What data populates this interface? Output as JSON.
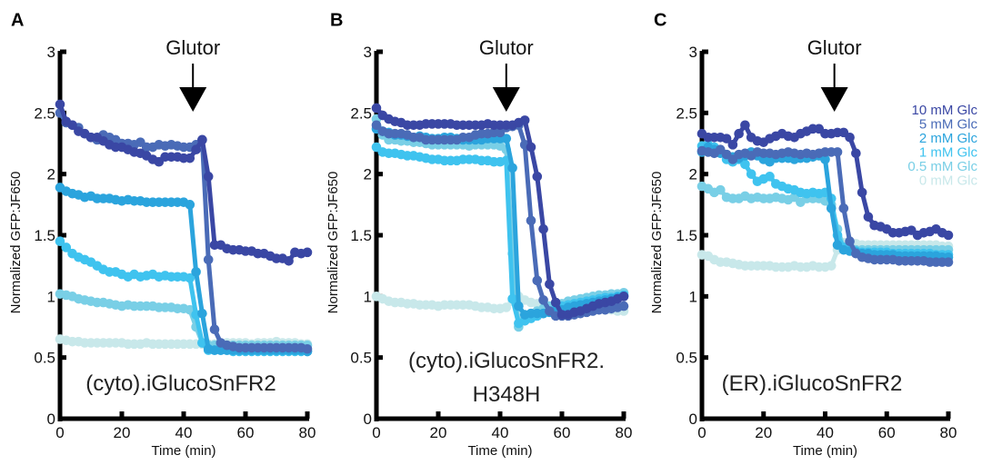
{
  "chart_data": [
    {
      "type": "line",
      "panel_label": "A",
      "title": "(cyto).iGlucoSnFR2",
      "xlabel": "Time (min)",
      "ylabel": "Normalized GFP:JF650",
      "xlim": [
        0,
        80
      ],
      "ylim": [
        0,
        3
      ],
      "xticks": [
        "0",
        "20",
        "40",
        "60",
        "80"
      ],
      "yticks": [
        "0",
        "0.5",
        "1",
        "1.5",
        "2",
        "2.5",
        "3"
      ],
      "annotation": {
        "text": "Glutor",
        "x": 43
      },
      "x": [
        0,
        2,
        4,
        6,
        8,
        10,
        12,
        14,
        16,
        18,
        20,
        22,
        24,
        26,
        28,
        30,
        32,
        34,
        36,
        38,
        40,
        42,
        44,
        46,
        48,
        50,
        52,
        54,
        56,
        58,
        60,
        62,
        64,
        66,
        68,
        70,
        72,
        74,
        76,
        78,
        80
      ],
      "series": [
        {
          "name": "10 mM Glc",
          "color": "#3a47a4",
          "values": [
            2.57,
            2.43,
            2.4,
            2.35,
            2.33,
            2.3,
            2.3,
            2.27,
            2.24,
            2.22,
            2.22,
            2.2,
            2.18,
            2.17,
            2.15,
            2.12,
            2.1,
            2.14,
            2.14,
            2.14,
            2.13,
            2.13,
            2.2,
            2.28,
            1.98,
            1.42,
            1.42,
            1.39,
            1.38,
            1.38,
            1.37,
            1.37,
            1.35,
            1.35,
            1.33,
            1.31,
            1.31,
            1.29,
            1.36,
            1.35,
            1.36
          ]
        },
        {
          "name": "5 mM Glc",
          "color": "#4a6bb7",
          "values": [
            2.5,
            2.42,
            2.4,
            2.38,
            2.33,
            2.3,
            2.28,
            2.32,
            2.3,
            2.28,
            2.25,
            2.25,
            2.24,
            2.26,
            2.22,
            2.22,
            2.24,
            2.23,
            2.24,
            2.23,
            2.22,
            2.22,
            2.24,
            2.28,
            1.3,
            0.73,
            0.62,
            0.6,
            0.59,
            0.58,
            0.58,
            0.58,
            0.58,
            0.58,
            0.58,
            0.58,
            0.58,
            0.58,
            0.58,
            0.58,
            0.57
          ]
        },
        {
          "name": "2 mM Glc",
          "color": "#2ba4dd",
          "values": [
            1.89,
            1.86,
            1.84,
            1.83,
            1.81,
            1.82,
            1.8,
            1.8,
            1.8,
            1.79,
            1.78,
            1.79,
            1.78,
            1.78,
            1.77,
            1.77,
            1.77,
            1.77,
            1.77,
            1.77,
            1.77,
            1.75,
            1.2,
            0.86,
            0.57,
            0.56,
            0.56,
            0.56,
            0.56,
            0.56,
            0.56,
            0.56,
            0.56,
            0.56,
            0.56,
            0.56,
            0.56,
            0.56,
            0.56,
            0.56,
            0.55
          ]
        },
        {
          "name": "1 mM Glc",
          "color": "#3fc3ef",
          "values": [
            1.45,
            1.4,
            1.35,
            1.32,
            1.3,
            1.28,
            1.25,
            1.22,
            1.2,
            1.2,
            1.18,
            1.16,
            1.18,
            1.16,
            1.17,
            1.18,
            1.16,
            1.17,
            1.16,
            1.16,
            1.16,
            1.15,
            0.85,
            0.62,
            0.56,
            0.56,
            0.56,
            0.56,
            0.55,
            0.55,
            0.55,
            0.55,
            0.55,
            0.55,
            0.55,
            0.55,
            0.55,
            0.55,
            0.55,
            0.55,
            0.55
          ]
        },
        {
          "name": "0.5 mM Glc",
          "color": "#79cfe6",
          "values": [
            1.02,
            1.01,
            1.0,
            0.98,
            0.97,
            0.96,
            0.95,
            0.95,
            0.94,
            0.93,
            0.92,
            0.93,
            0.92,
            0.92,
            0.92,
            0.92,
            0.91,
            0.91,
            0.91,
            0.9,
            0.9,
            0.89,
            0.75,
            0.62,
            0.6,
            0.6,
            0.6,
            0.6,
            0.6,
            0.6,
            0.6,
            0.6,
            0.6,
            0.6,
            0.6,
            0.6,
            0.6,
            0.6,
            0.6,
            0.6,
            0.6
          ]
        },
        {
          "name": "0 mM Glc",
          "color": "#c8e8ea",
          "values": [
            0.65,
            0.64,
            0.63,
            0.63,
            0.62,
            0.62,
            0.62,
            0.62,
            0.62,
            0.62,
            0.62,
            0.61,
            0.61,
            0.61,
            0.62,
            0.61,
            0.61,
            0.61,
            0.61,
            0.61,
            0.61,
            0.61,
            0.61,
            0.61,
            0.61,
            0.61,
            0.61,
            0.62,
            0.62,
            0.62,
            0.62,
            0.61,
            0.62,
            0.62,
            0.62,
            0.63,
            0.62,
            0.62,
            0.62,
            0.61,
            0.61
          ]
        }
      ]
    },
    {
      "type": "line",
      "panel_label": "B",
      "title": "(cyto).iGlucoSnFR2.\nH348H",
      "title_lines": [
        "(cyto).iGlucoSnFR2.",
        "H348H"
      ],
      "xlabel": "Time (min)",
      "ylabel": "Normalized GFP:JF650",
      "xlim": [
        0,
        80
      ],
      "ylim": [
        0,
        3
      ],
      "xticks": [
        "0",
        "20",
        "40",
        "60",
        "80"
      ],
      "yticks": [
        "0",
        "0.5",
        "1",
        "1.5",
        "2",
        "2.5",
        "3"
      ],
      "annotation": {
        "text": "Glutor",
        "x": 42
      },
      "x": [
        0,
        2,
        4,
        6,
        8,
        10,
        12,
        14,
        16,
        18,
        20,
        22,
        24,
        26,
        28,
        30,
        32,
        34,
        36,
        38,
        40,
        42,
        44,
        46,
        48,
        50,
        52,
        54,
        56,
        58,
        60,
        62,
        64,
        66,
        68,
        70,
        72,
        74,
        76,
        78,
        80
      ],
      "series": [
        {
          "name": "10 mM Glc",
          "color": "#3a47a4",
          "values": [
            2.54,
            2.48,
            2.45,
            2.43,
            2.42,
            2.4,
            2.4,
            2.4,
            2.41,
            2.41,
            2.41,
            2.41,
            2.41,
            2.4,
            2.4,
            2.4,
            2.4,
            2.4,
            2.41,
            2.4,
            2.4,
            2.4,
            2.4,
            2.42,
            2.44,
            2.22,
            1.98,
            1.55,
            1.1,
            0.95,
            0.85,
            0.85,
            0.87,
            0.88,
            0.9,
            0.92,
            0.94,
            0.95,
            0.96,
            0.98,
            1.0
          ]
        },
        {
          "name": "5 mM Glc",
          "color": "#4a6bb7",
          "values": [
            2.4,
            2.35,
            2.33,
            2.33,
            2.33,
            2.32,
            2.3,
            2.3,
            2.28,
            2.28,
            2.28,
            2.28,
            2.28,
            2.28,
            2.3,
            2.3,
            2.32,
            2.33,
            2.33,
            2.34,
            2.34,
            2.38,
            2.39,
            2.4,
            2.24,
            1.62,
            1.13,
            0.97,
            0.88,
            0.84,
            0.84,
            0.84,
            0.85,
            0.86,
            0.87,
            0.88,
            0.89,
            0.89,
            0.9,
            0.91,
            0.92
          ]
        },
        {
          "name": "2 mM Glc",
          "color": "#2ba4dd",
          "values": [
            2.37,
            2.35,
            2.34,
            2.32,
            2.32,
            2.31,
            2.3,
            2.31,
            2.3,
            2.29,
            2.29,
            2.3,
            2.3,
            2.29,
            2.28,
            2.28,
            2.28,
            2.28,
            2.29,
            2.29,
            2.29,
            2.29,
            2.05,
            0.92,
            0.85,
            0.86,
            0.86,
            0.86,
            0.87,
            0.88,
            0.89,
            0.91,
            0.92,
            0.93,
            0.94,
            0.95,
            0.96,
            0.97,
            0.98,
            0.99,
            1.0
          ]
        },
        {
          "name": "1 mM Glc",
          "color": "#3fc3ef",
          "values": [
            2.22,
            2.18,
            2.17,
            2.17,
            2.16,
            2.15,
            2.15,
            2.14,
            2.13,
            2.12,
            2.12,
            2.11,
            2.11,
            2.11,
            2.12,
            2.12,
            2.12,
            2.11,
            2.11,
            2.1,
            2.1,
            2.11,
            0.98,
            0.78,
            0.8,
            0.82,
            0.84,
            0.86,
            0.88,
            0.9,
            0.92,
            0.93,
            0.94,
            0.95,
            0.96,
            0.97,
            0.98,
            0.99,
            0.99,
            1.0,
            1.01
          ]
        },
        {
          "name": "0.5 mM Glc",
          "color": "#79cfe6",
          "values": [
            2.45,
            2.32,
            2.28,
            2.28,
            2.27,
            2.27,
            2.26,
            2.26,
            2.25,
            2.24,
            2.24,
            2.24,
            2.24,
            2.24,
            2.24,
            2.23,
            2.24,
            2.24,
            2.24,
            2.24,
            2.23,
            2.2,
            1.35,
            0.75,
            0.82,
            0.86,
            0.88,
            0.9,
            0.92,
            0.93,
            0.94,
            0.96,
            0.97,
            0.98,
            0.99,
            1.0,
            1.01,
            1.01,
            1.02,
            1.02,
            1.03
          ]
        },
        {
          "name": "0 mM Glc",
          "color": "#c8e8ea",
          "values": [
            1.0,
            0.98,
            0.96,
            0.95,
            0.95,
            0.94,
            0.94,
            0.93,
            0.93,
            0.93,
            0.92,
            0.93,
            0.93,
            0.93,
            0.93,
            0.93,
            0.92,
            0.91,
            0.91,
            0.9,
            0.9,
            0.91,
            0.96,
            1.0,
            0.97,
            0.95,
            0.94,
            0.93,
            0.92,
            0.92,
            0.92,
            0.91,
            0.91,
            0.9,
            0.9,
            0.9,
            0.89,
            0.89,
            0.89,
            0.88,
            0.88
          ]
        }
      ]
    },
    {
      "type": "line",
      "panel_label": "C",
      "title": "(ER).iGlucoSnFR2",
      "xlabel": "Time (min)",
      "ylabel": "Normalized GFP:JF650",
      "xlim": [
        0,
        80
      ],
      "ylim": [
        0,
        3
      ],
      "xticks": [
        "0",
        "20",
        "40",
        "60",
        "80"
      ],
      "yticks": [
        "0",
        "0.5",
        "1",
        "1.5",
        "2",
        "2.5",
        "3"
      ],
      "annotation": {
        "text": "Glutor",
        "x": 43
      },
      "legend": {
        "position": "top-right",
        "entries": [
          "10 mM Glc",
          "5 mM Glc",
          "2 mM Glc",
          "1 mM Glc",
          "0.5 mM Glc",
          "0 mM Glc"
        ]
      },
      "x": [
        0,
        2,
        4,
        6,
        8,
        10,
        12,
        14,
        16,
        18,
        20,
        22,
        24,
        26,
        28,
        30,
        32,
        34,
        36,
        38,
        40,
        42,
        44,
        46,
        48,
        50,
        52,
        54,
        56,
        58,
        60,
        62,
        64,
        66,
        68,
        70,
        72,
        74,
        76,
        78,
        80
      ],
      "series": [
        {
          "name": "10 mM Glc",
          "color": "#3a47a4",
          "values": [
            2.33,
            2.3,
            2.3,
            2.3,
            2.29,
            2.24,
            2.33,
            2.4,
            2.3,
            2.27,
            2.26,
            2.29,
            2.31,
            2.33,
            2.31,
            2.3,
            2.33,
            2.35,
            2.37,
            2.37,
            2.33,
            2.33,
            2.34,
            2.34,
            2.3,
            2.17,
            1.85,
            1.65,
            1.58,
            1.57,
            1.55,
            1.52,
            1.52,
            1.53,
            1.54,
            1.5,
            1.52,
            1.53,
            1.55,
            1.52,
            1.5
          ]
        },
        {
          "name": "5 mM Glc",
          "color": "#4a6bb7",
          "values": [
            2.19,
            2.18,
            2.17,
            2.2,
            2.16,
            2.12,
            2.16,
            2.17,
            2.15,
            2.18,
            2.17,
            2.17,
            2.16,
            2.17,
            2.18,
            2.17,
            2.16,
            2.17,
            2.16,
            2.17,
            2.18,
            2.18,
            2.18,
            1.72,
            1.45,
            1.35,
            1.32,
            1.31,
            1.3,
            1.3,
            1.3,
            1.3,
            1.29,
            1.29,
            1.29,
            1.29,
            1.29,
            1.28,
            1.28,
            1.28,
            1.28
          ]
        },
        {
          "name": "2 mM Glc",
          "color": "#2ba4dd",
          "values": [
            2.18,
            2.22,
            2.2,
            2.17,
            2.16,
            2.14,
            2.13,
            2.15,
            2.18,
            2.15,
            2.12,
            2.1,
            2.13,
            2.13,
            2.13,
            2.12,
            2.13,
            2.13,
            2.14,
            2.15,
            2.12,
            1.72,
            1.42,
            1.38,
            1.37,
            1.36,
            1.35,
            1.35,
            1.34,
            1.34,
            1.34,
            1.34,
            1.33,
            1.33,
            1.33,
            1.33,
            1.33,
            1.33,
            1.33,
            1.32,
            1.32
          ]
        },
        {
          "name": "1 mM Glc",
          "color": "#3fc3ef",
          "values": [
            2.23,
            2.24,
            2.22,
            2.18,
            2.12,
            2.1,
            2.12,
            2.08,
            2.0,
            1.94,
            1.96,
            1.98,
            1.92,
            1.9,
            1.88,
            1.87,
            1.85,
            1.84,
            1.85,
            1.84,
            1.85,
            1.8,
            1.5,
            1.4,
            1.38,
            1.37,
            1.36,
            1.36,
            1.36,
            1.36,
            1.36,
            1.35,
            1.35,
            1.35,
            1.35,
            1.35,
            1.35,
            1.35,
            1.34,
            1.34,
            1.34
          ]
        },
        {
          "name": "0.5 mM Glc",
          "color": "#79cfe6",
          "values": [
            1.9,
            1.88,
            1.85,
            1.87,
            1.81,
            1.8,
            1.8,
            1.82,
            1.8,
            1.81,
            1.8,
            1.8,
            1.81,
            1.8,
            1.79,
            1.81,
            1.77,
            1.8,
            1.8,
            1.8,
            1.78,
            1.75,
            1.55,
            1.4,
            1.38,
            1.38,
            1.38,
            1.38,
            1.38,
            1.38,
            1.38,
            1.38,
            1.38,
            1.38,
            1.38,
            1.38,
            1.38,
            1.38,
            1.38,
            1.38,
            1.38
          ]
        },
        {
          "name": "0 mM Glc",
          "color": "#c8e8ea",
          "values": [
            1.34,
            1.33,
            1.3,
            1.28,
            1.28,
            1.27,
            1.26,
            1.25,
            1.25,
            1.25,
            1.25,
            1.25,
            1.24,
            1.24,
            1.24,
            1.25,
            1.24,
            1.24,
            1.25,
            1.24,
            1.24,
            1.25,
            1.38,
            1.44,
            1.43,
            1.43,
            1.42,
            1.42,
            1.42,
            1.42,
            1.42,
            1.42,
            1.42,
            1.42,
            1.42,
            1.42,
            1.42,
            1.42,
            1.42,
            1.41,
            1.41
          ]
        }
      ]
    }
  ]
}
